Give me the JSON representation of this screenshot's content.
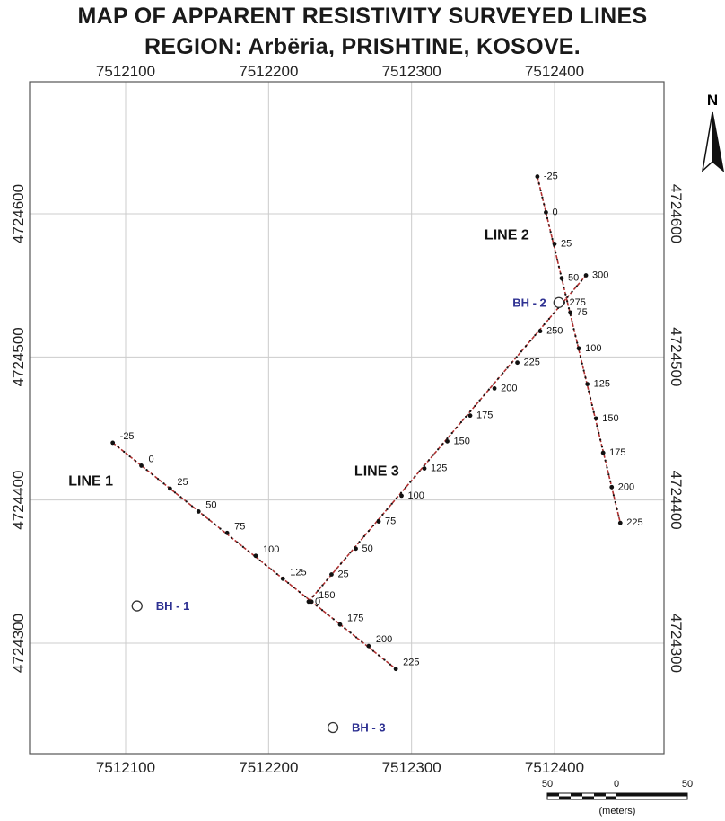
{
  "title": {
    "line1": "MAP OF APPARENT RESISTIVITY SURVEYED LINES",
    "line2": "REGION: Arbëria, PRISHTINE, KOSOVE."
  },
  "north_arrow": {
    "label": "N"
  },
  "x_ticks": [
    {
      "value": 7512100,
      "label": "7512100"
    },
    {
      "value": 7512200,
      "label": "7512200"
    },
    {
      "value": 7512300,
      "label": "7512300"
    },
    {
      "value": 7512400,
      "label": "7512400"
    }
  ],
  "y_ticks": [
    {
      "value": 4724600,
      "label": "4724600"
    },
    {
      "value": 4724500,
      "label": "4724500"
    },
    {
      "value": 4724400,
      "label": "4724400"
    },
    {
      "value": 4724300,
      "label": "4724300"
    }
  ],
  "x_range": [
    7512032,
    7512446
  ],
  "y_range": [
    4724225,
    4724697
  ],
  "colors": {
    "profile": "#b03030",
    "station": "#111111",
    "borehole_label": "#2e3192",
    "grid": "#cccccc"
  },
  "lines": [
    {
      "name": "LINE 1",
      "label_at": {
        "x": 7512060,
        "y": 4724410
      },
      "stations": [
        {
          "label": "-25",
          "x": 7512091,
          "y": 4724440
        },
        {
          "label": "0",
          "x": 7512111,
          "y": 4724424
        },
        {
          "label": "25",
          "x": 7512131,
          "y": 4724408
        },
        {
          "label": "50",
          "x": 7512151,
          "y": 4724392
        },
        {
          "label": "75",
          "x": 7512171,
          "y": 4724377
        },
        {
          "label": "100",
          "x": 7512191,
          "y": 4724361
        },
        {
          "label": "125",
          "x": 7512210,
          "y": 4724345
        },
        {
          "label": "150",
          "x": 7512230,
          "y": 4724329
        },
        {
          "label": "175",
          "x": 7512250,
          "y": 4724313
        },
        {
          "label": "200",
          "x": 7512270,
          "y": 4724298
        },
        {
          "label": "225",
          "x": 7512289,
          "y": 4724282
        }
      ]
    },
    {
      "name": "LINE 2",
      "label_at": {
        "x": 7512351,
        "y": 4724582
      },
      "stations": [
        {
          "label": "-25",
          "x": 7512388,
          "y": 4724626
        },
        {
          "label": "0",
          "x": 7512394,
          "y": 4724601
        },
        {
          "label": "25",
          "x": 7512400,
          "y": 4724579
        },
        {
          "label": "50",
          "x": 7512405,
          "y": 4724555
        },
        {
          "label": "75",
          "x": 7512411,
          "y": 4724531
        },
        {
          "label": "100",
          "x": 7512417,
          "y": 4724506
        },
        {
          "label": "125",
          "x": 7512423,
          "y": 4724481
        },
        {
          "label": "150",
          "x": 7512429,
          "y": 4724457
        },
        {
          "label": "175",
          "x": 7512434,
          "y": 4724433
        },
        {
          "label": "200",
          "x": 7512440,
          "y": 4724409
        },
        {
          "label": "225",
          "x": 7512446,
          "y": 4724384
        }
      ]
    },
    {
      "name": "LINE 3",
      "label_at": {
        "x": 7512260,
        "y": 4724417
      },
      "stations": [
        {
          "label": "0",
          "x": 7512228,
          "y": 4724329
        },
        {
          "label": "25",
          "x": 7512244,
          "y": 4724348
        },
        {
          "label": "50",
          "x": 7512261,
          "y": 4724366
        },
        {
          "label": "75",
          "x": 7512277,
          "y": 4724385
        },
        {
          "label": "100",
          "x": 7512293,
          "y": 4724403
        },
        {
          "label": "125",
          "x": 7512309,
          "y": 4724422
        },
        {
          "label": "150",
          "x": 7512325,
          "y": 4724441
        },
        {
          "label": "175",
          "x": 7512341,
          "y": 4724459
        },
        {
          "label": "200",
          "x": 7512358,
          "y": 4724478
        },
        {
          "label": "225",
          "x": 7512374,
          "y": 4724496
        },
        {
          "label": "250",
          "x": 7512390,
          "y": 4724518
        },
        {
          "label": "275",
          "x": 7512406,
          "y": 4724538
        },
        {
          "label": "300",
          "x": 7512422,
          "y": 4724557
        }
      ]
    }
  ],
  "boreholes": [
    {
      "label": "BH - 1",
      "x": 7512108,
      "y": 4724326
    },
    {
      "label": "BH - 2",
      "x": 7512403,
      "y": 4724538
    },
    {
      "label": "BH - 3",
      "x": 7512245,
      "y": 4724241
    }
  ],
  "scale_bar": {
    "labels": [
      "50",
      "0",
      "50"
    ],
    "unit": "(meters)"
  }
}
